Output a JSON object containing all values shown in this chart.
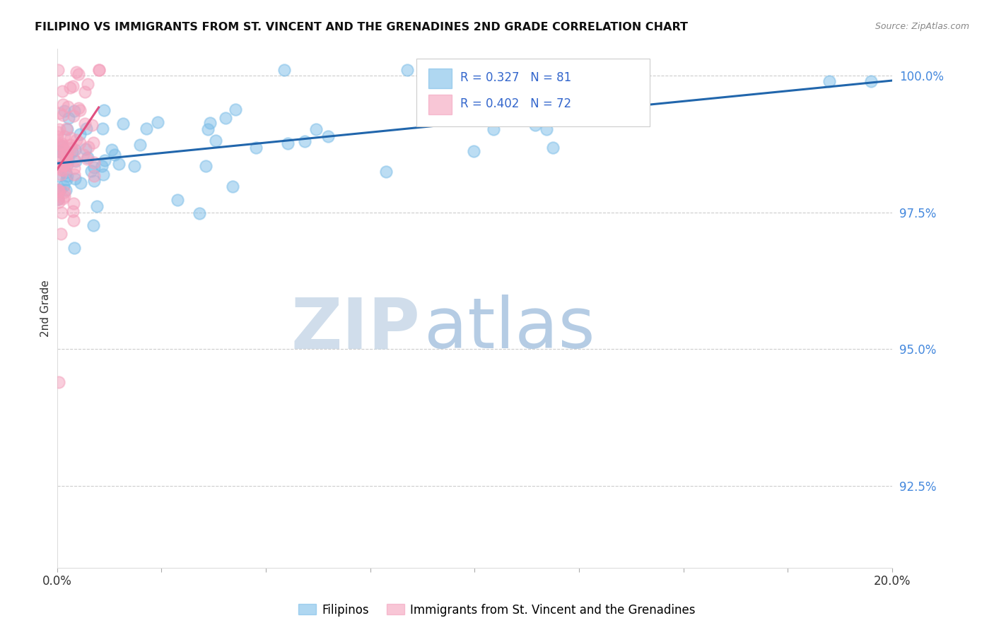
{
  "title": "FILIPINO VS IMMIGRANTS FROM ST. VINCENT AND THE GRENADINES 2ND GRADE CORRELATION CHART",
  "source": "Source: ZipAtlas.com",
  "ylabel": "2nd Grade",
  "ylabel_right_ticks": [
    "92.5%",
    "95.0%",
    "97.5%",
    "100.0%"
  ],
  "ylabel_right_values": [
    0.925,
    0.95,
    0.975,
    1.0
  ],
  "legend_blue_label": "Filipinos",
  "legend_pink_label": "Immigrants from St. Vincent and the Grenadines",
  "R_blue": 0.327,
  "N_blue": 81,
  "R_pink": 0.402,
  "N_pink": 72,
  "blue_color": "#7bbde8",
  "pink_color": "#f4a0bc",
  "trend_blue_color": "#2166ac",
  "trend_pink_color": "#e05080",
  "background_color": "#ffffff",
  "xlim": [
    0.0,
    0.2
  ],
  "ylim": [
    0.91,
    1.005
  ],
  "grid_color": "#cccccc",
  "watermark_zip": "ZIP",
  "watermark_atlas": "atlas",
  "watermark_zip_color": "#c8d8e8",
  "watermark_atlas_color": "#a8c4e0"
}
